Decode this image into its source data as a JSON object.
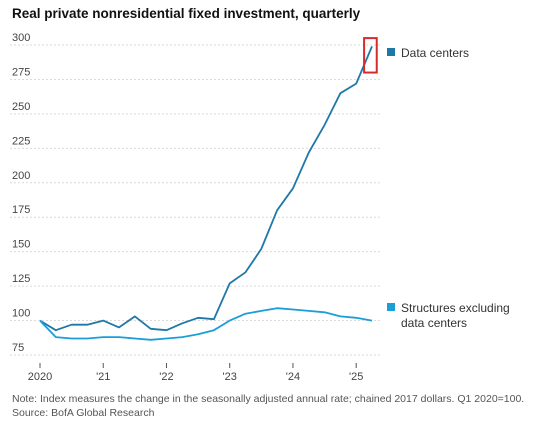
{
  "chart_data": {
    "type": "line",
    "title": "Real private nonresidential fixed investment, quarterly",
    "xlabel": "",
    "ylabel": "",
    "ylim": [
      75,
      300
    ],
    "yticks": [
      75,
      100,
      125,
      150,
      175,
      200,
      225,
      250,
      275,
      300
    ],
    "xticks": [
      {
        "label": "2020",
        "x": 0
      },
      {
        "label": "'21",
        "x": 4
      },
      {
        "label": "'22",
        "x": 8
      },
      {
        "label": "'23",
        "x": 12
      },
      {
        "label": "'24",
        "x": 16
      },
      {
        "label": "'25",
        "x": 20
      }
    ],
    "grid": true,
    "legend_placement": "right",
    "series": [
      {
        "name": "Data centers",
        "color": "#1f78a8",
        "x": [
          0,
          1,
          2,
          3,
          4,
          5,
          6,
          7,
          8,
          9,
          10,
          11,
          12,
          13,
          14,
          15,
          16,
          17,
          18,
          19,
          20,
          21
        ],
        "values": [
          100,
          93,
          97,
          97,
          100,
          95,
          103,
          94,
          93,
          98,
          102,
          101,
          127,
          135,
          152,
          180,
          196,
          222,
          242,
          265,
          272,
          299
        ]
      },
      {
        "name": "Structures excluding data centers",
        "color": "#1a9ed8",
        "x": [
          0,
          1,
          2,
          3,
          4,
          5,
          6,
          7,
          8,
          9,
          10,
          11,
          12,
          13,
          14,
          15,
          16,
          17,
          18,
          19,
          20,
          21
        ],
        "values": [
          100,
          88,
          87,
          87,
          88,
          88,
          87,
          86,
          87,
          88,
          90,
          93,
          100,
          105,
          107,
          109,
          108,
          107,
          106,
          103,
          102,
          100
        ]
      }
    ],
    "legend": [
      {
        "label": "Data centers",
        "color": "#1f78a8"
      },
      {
        "label": "Structures excluding",
        "label2": "data centers",
        "color": "#1a9ed8"
      }
    ],
    "annotation": {
      "type": "highlight-box",
      "color": "#d62b2b",
      "x_range": [
        20.5,
        21.3
      ],
      "y_range": [
        280,
        305
      ]
    },
    "note": "Note: Index measures the change in the seasonally adjusted annual rate; chained 2017 dollars. Q1 2020=100.",
    "source": "Source: BofA Global Research"
  }
}
